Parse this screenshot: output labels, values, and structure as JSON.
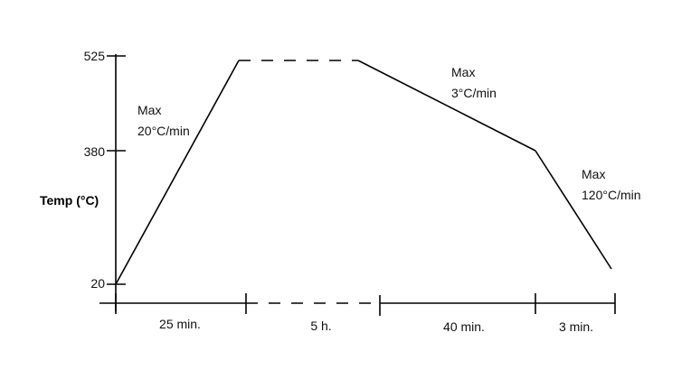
{
  "diagram": {
    "y_axis_label": "Temp (°C)",
    "y_ticks": [
      "525",
      "380",
      "20"
    ],
    "time_segments": [
      "25 min.",
      "5 h.",
      "40 min.",
      "3 min."
    ],
    "rate_annotations": [
      {
        "line1": "Max",
        "line2": "20°C/min"
      },
      {
        "line1": "Max",
        "line2": "3°C/min"
      },
      {
        "line1": "Max",
        "line2": "120°C/min"
      }
    ],
    "profile_points": [
      {
        "label": "start",
        "temp_c": 20
      },
      {
        "label": "end of heating",
        "temp_c": 525
      },
      {
        "label": "end of hold",
        "temp_c": 525
      },
      {
        "label": "end of slow cool",
        "temp_c": 380
      },
      {
        "label": "end of fast cool",
        "temp_c": 20
      }
    ]
  }
}
